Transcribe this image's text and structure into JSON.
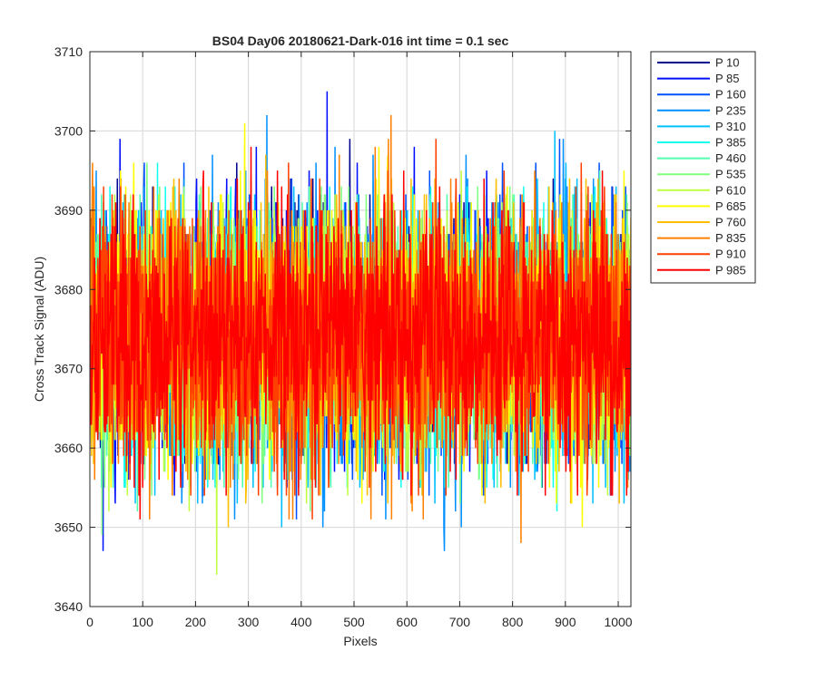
{
  "chart_data": {
    "type": "line",
    "title": "BS04 Day06 20180621-Dark-016 int time = 0.1 sec",
    "xlabel": "Pixels",
    "ylabel": "Cross Track Signal (ADU)",
    "xlim": [
      0,
      1024
    ],
    "ylim": [
      3640,
      3710
    ],
    "xticks": [
      0,
      100,
      200,
      300,
      400,
      500,
      600,
      700,
      800,
      900,
      1000
    ],
    "yticks": [
      3640,
      3650,
      3660,
      3670,
      3680,
      3690,
      3700,
      3710
    ],
    "grid": true,
    "legend_position": "outside-top-right",
    "n_points": 1024,
    "series_mean": 3674,
    "series_std": 8,
    "series": [
      {
        "name": "P 10",
        "color": "#00008f",
        "max": 3699,
        "min": 3655
      },
      {
        "name": "P 85",
        "color": "#0010ff",
        "max": 3705,
        "min": 3647
      },
      {
        "name": "P 160",
        "color": "#0050ff",
        "max": 3699,
        "min": 3651
      },
      {
        "name": "P 235",
        "color": "#0090ff",
        "max": 3702,
        "min": 3647
      },
      {
        "name": "P 310",
        "color": "#00c0ff",
        "max": 3700,
        "min": 3650
      },
      {
        "name": "P 385",
        "color": "#10ffef",
        "max": 3696,
        "min": 3652
      },
      {
        "name": "P 460",
        "color": "#50ffaf",
        "max": 3695,
        "min": 3652
      },
      {
        "name": "P 535",
        "color": "#80ff80",
        "max": 3696,
        "min": 3649
      },
      {
        "name": "P 610",
        "color": "#c0ff40",
        "max": 3695,
        "min": 3644
      },
      {
        "name": "P 685",
        "color": "#ffff00",
        "max": 3701,
        "min": 3650
      },
      {
        "name": "P 760",
        "color": "#ffbf00",
        "max": 3697,
        "min": 3650
      },
      {
        "name": "P 835",
        "color": "#ff8000",
        "max": 3702,
        "min": 3648
      },
      {
        "name": "P 910",
        "color": "#ff4000",
        "max": 3699,
        "min": 3651
      },
      {
        "name": "P 985",
        "color": "#ff0000",
        "max": 3698,
        "min": 3651
      }
    ]
  }
}
